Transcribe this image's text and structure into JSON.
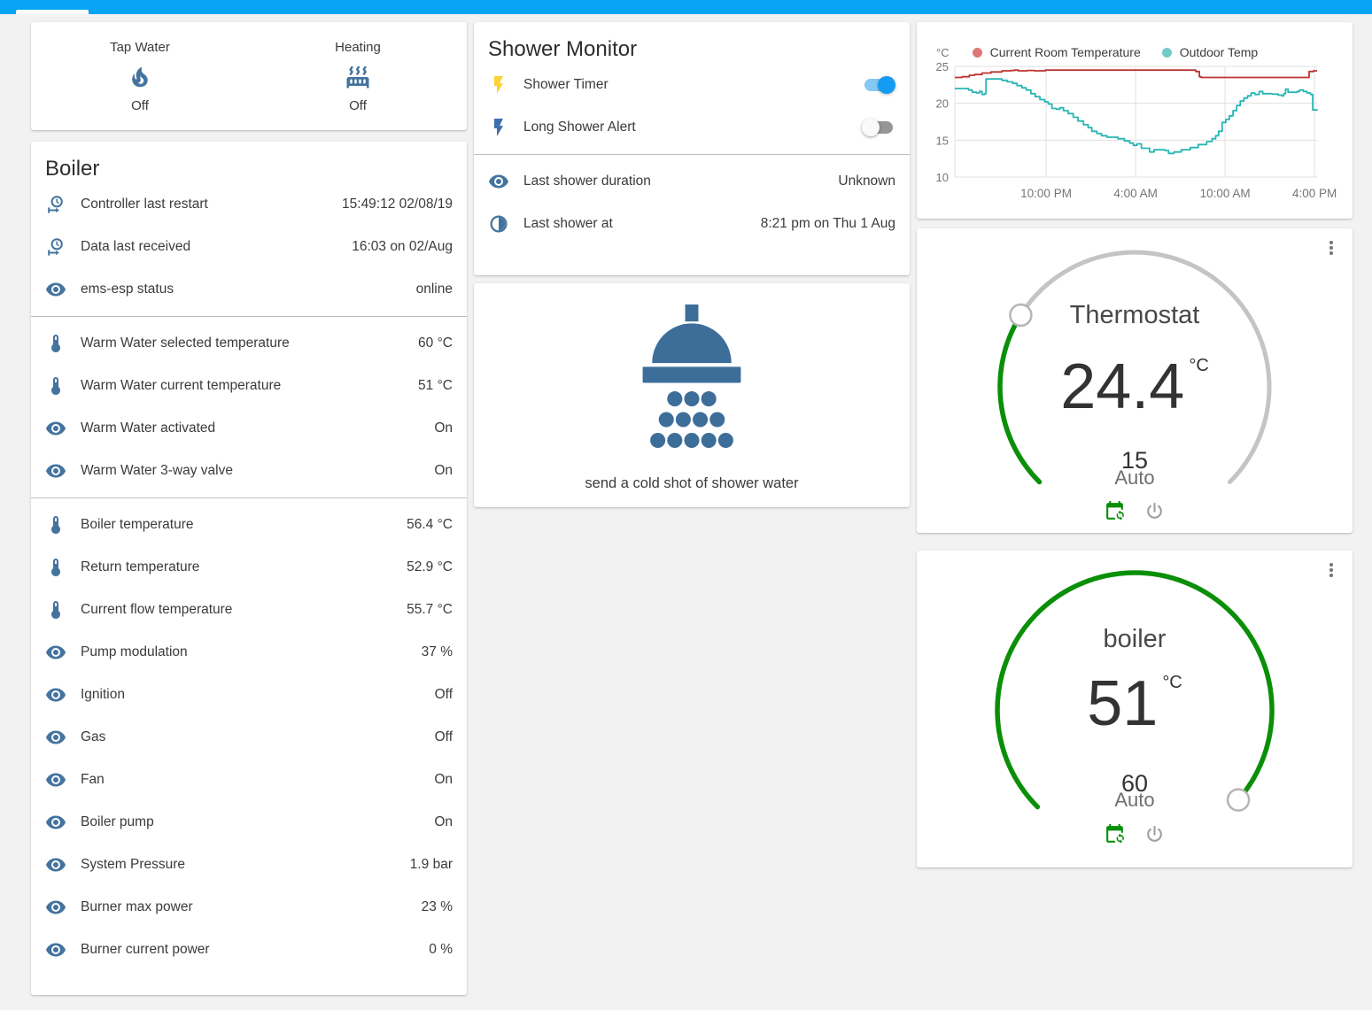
{
  "header": {
    "color": "#06a4f3"
  },
  "glance": {
    "items": [
      {
        "name": "Tap Water",
        "icon": "fire",
        "state": "Off"
      },
      {
        "name": "Heating",
        "icon": "radiator",
        "state": "Off"
      }
    ]
  },
  "boiler_card": {
    "title": "Boiler",
    "rows": [
      {
        "icon": "clock-start",
        "label": "Controller last restart",
        "value": "15:49:12 02/08/19"
      },
      {
        "icon": "clock-start",
        "label": "Data last received",
        "value": "16:03 on 02/Aug"
      },
      {
        "icon": "eye",
        "label": "ems-esp status",
        "value": "online"
      },
      {
        "divider": true
      },
      {
        "icon": "thermometer",
        "label": "Warm Water selected temperature",
        "value": "60 °C"
      },
      {
        "icon": "thermometer",
        "label": "Warm Water current temperature",
        "value": "51 °C"
      },
      {
        "icon": "eye",
        "label": "Warm Water activated",
        "value": "On"
      },
      {
        "icon": "eye",
        "label": "Warm Water 3-way valve",
        "value": "On"
      },
      {
        "divider": true
      },
      {
        "icon": "thermometer",
        "label": "Boiler temperature",
        "value": "56.4 °C"
      },
      {
        "icon": "thermometer",
        "label": "Return temperature",
        "value": "52.9 °C"
      },
      {
        "icon": "thermometer",
        "label": "Current flow temperature",
        "value": "55.7 °C"
      },
      {
        "icon": "eye",
        "label": "Pump modulation",
        "value": "37 %"
      },
      {
        "icon": "eye",
        "label": "Ignition",
        "value": "Off"
      },
      {
        "icon": "eye",
        "label": "Gas",
        "value": "Off"
      },
      {
        "icon": "eye",
        "label": "Fan",
        "value": "On"
      },
      {
        "icon": "eye",
        "label": "Boiler pump",
        "value": "On"
      },
      {
        "icon": "eye",
        "label": "System Pressure",
        "value": "1.9 bar"
      },
      {
        "icon": "eye",
        "label": "Burner max power",
        "value": "23 %"
      },
      {
        "icon": "eye",
        "label": "Burner current power",
        "value": "0 %"
      }
    ]
  },
  "shower_monitor": {
    "title": "Shower Monitor",
    "toggles": [
      {
        "icon": "flash",
        "icon_color": "#fdd335",
        "label": "Shower Timer",
        "state": true
      },
      {
        "icon": "flash",
        "icon_color": "#3f6fb0",
        "label": "Long Shower Alert",
        "state": false
      }
    ],
    "rows": [
      {
        "icon": "eye",
        "label": "Last shower duration",
        "value": "Unknown"
      },
      {
        "icon": "clock-half",
        "label": "Last shower at",
        "value": "8:21 pm on Thu 1 Aug"
      }
    ]
  },
  "shower_card": {
    "caption": "send a cold shot of shower water"
  },
  "chart_data": {
    "type": "line",
    "title": "",
    "xlabel": "",
    "ylabel": "°C",
    "ylim": [
      10,
      25
    ],
    "yticks": [
      25,
      20,
      15,
      10
    ],
    "grid": true,
    "legend_position": "top",
    "xticks": [
      {
        "label": "10:00 PM",
        "f": 0.252
      },
      {
        "label": "4:00 AM",
        "f": 0.499
      },
      {
        "label": "10:00 AM",
        "f": 0.746
      },
      {
        "label": "4:00 PM",
        "f": 0.993
      }
    ],
    "legend_items": [
      {
        "label": "Current Room Temperature",
        "color": "#df7775"
      },
      {
        "label": "Outdoor Temp",
        "color": "#74c9c9"
      }
    ],
    "series": [
      {
        "name": "Current Room Temperature",
        "color": "#bc342f",
        "points": [
          [
            0,
            23.5
          ],
          [
            0.02,
            23.6
          ],
          [
            0.04,
            23.8
          ],
          [
            0.055,
            23.9
          ],
          [
            0.075,
            24.1
          ],
          [
            0.1,
            24.25
          ],
          [
            0.13,
            24.4
          ],
          [
            0.155,
            24.45
          ],
          [
            0.165,
            24.5
          ],
          [
            0.175,
            24.4
          ],
          [
            0.2,
            24.45
          ],
          [
            0.22,
            24.4
          ],
          [
            0.25,
            24.5
          ],
          [
            0.4,
            24.5
          ],
          [
            0.5,
            24.5
          ],
          [
            0.6,
            24.5
          ],
          [
            0.655,
            24.5
          ],
          [
            0.665,
            24.3
          ],
          [
            0.675,
            23.6
          ],
          [
            0.68,
            23.5
          ],
          [
            0.8,
            23.5
          ],
          [
            0.9,
            23.5
          ],
          [
            0.972,
            23.5
          ],
          [
            0.978,
            24.3
          ],
          [
            0.99,
            24.4
          ],
          [
            1,
            24.4
          ]
        ]
      },
      {
        "name": "Outdoor Temp",
        "color": "#27b5b4",
        "points": [
          [
            0,
            22.0
          ],
          [
            0.03,
            22.0
          ],
          [
            0.038,
            21.8
          ],
          [
            0.048,
            21.5
          ],
          [
            0.06,
            21.4
          ],
          [
            0.068,
            21.6
          ],
          [
            0.075,
            21.2
          ],
          [
            0.082,
            21.3
          ],
          [
            0.086,
            23.3
          ],
          [
            0.115,
            23.3
          ],
          [
            0.13,
            23.1
          ],
          [
            0.145,
            22.9
          ],
          [
            0.16,
            22.7
          ],
          [
            0.172,
            22.4
          ],
          [
            0.185,
            22.1
          ],
          [
            0.197,
            21.8
          ],
          [
            0.21,
            21.3
          ],
          [
            0.222,
            20.9
          ],
          [
            0.235,
            20.5
          ],
          [
            0.248,
            20.2
          ],
          [
            0.258,
            19.9
          ],
          [
            0.268,
            19.3
          ],
          [
            0.28,
            19.2
          ],
          [
            0.29,
            19.4
          ],
          [
            0.3,
            19.0
          ],
          [
            0.313,
            18.6
          ],
          [
            0.327,
            18.1
          ],
          [
            0.34,
            17.6
          ],
          [
            0.355,
            17.1
          ],
          [
            0.368,
            16.7
          ],
          [
            0.378,
            16.2
          ],
          [
            0.392,
            15.9
          ],
          [
            0.405,
            15.6
          ],
          [
            0.42,
            15.4
          ],
          [
            0.45,
            15.2
          ],
          [
            0.468,
            14.9
          ],
          [
            0.483,
            14.6
          ],
          [
            0.493,
            14.3
          ],
          [
            0.503,
            14.5
          ],
          [
            0.515,
            13.9
          ],
          [
            0.53,
            13.9
          ],
          [
            0.538,
            13.4
          ],
          [
            0.55,
            13.7
          ],
          [
            0.58,
            13.6
          ],
          [
            0.59,
            13.2
          ],
          [
            0.605,
            13.4
          ],
          [
            0.625,
            13.7
          ],
          [
            0.65,
            14.0
          ],
          [
            0.672,
            14.4
          ],
          [
            0.695,
            14.8
          ],
          [
            0.71,
            15.2
          ],
          [
            0.72,
            15.6
          ],
          [
            0.728,
            16.2
          ],
          [
            0.738,
            17.4
          ],
          [
            0.748,
            17.8
          ],
          [
            0.758,
            18.3
          ],
          [
            0.768,
            19.0
          ],
          [
            0.778,
            19.7
          ],
          [
            0.788,
            20.3
          ],
          [
            0.798,
            20.7
          ],
          [
            0.808,
            21.0
          ],
          [
            0.818,
            21.4
          ],
          [
            0.828,
            21.2
          ],
          [
            0.84,
            21.6
          ],
          [
            0.85,
            21.3
          ],
          [
            0.875,
            21.25
          ],
          [
            0.893,
            21.1
          ],
          [
            0.903,
            21.0
          ],
          [
            0.908,
            21.3
          ],
          [
            0.913,
            21.9
          ],
          [
            0.92,
            21.5
          ],
          [
            0.945,
            21.6
          ],
          [
            0.952,
            21.8
          ],
          [
            0.962,
            21.6
          ],
          [
            0.972,
            21.4
          ],
          [
            0.982,
            21.2
          ],
          [
            0.988,
            19.1
          ],
          [
            1,
            19.0
          ]
        ]
      }
    ]
  },
  "gauges": [
    {
      "title": "Thermostat",
      "value": "24.4",
      "unit": "°C",
      "target": "15",
      "mode": "Auto",
      "fraction": 0.286,
      "active_color": "#0a8f08",
      "track_color": "#c4c4c4"
    },
    {
      "title": "boiler",
      "value": "51",
      "unit": "°C",
      "target": "60",
      "mode": "Auto",
      "fraction": 0.985,
      "active_color": "#0a8f08",
      "track_color": "#c4c4c4"
    }
  ]
}
